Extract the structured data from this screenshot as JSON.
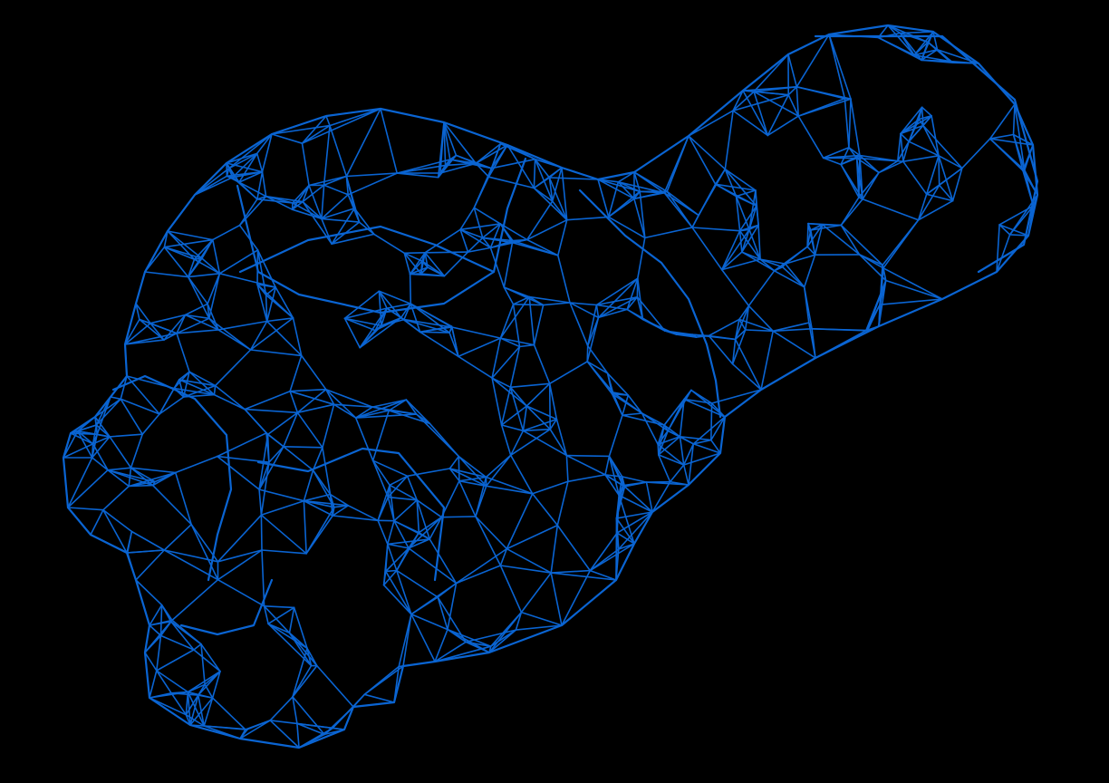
{
  "background_color": "#000000",
  "mesh": {
    "render_mode": "wireframe",
    "stroke_color": "#0a64d2",
    "seed": 7
  }
}
